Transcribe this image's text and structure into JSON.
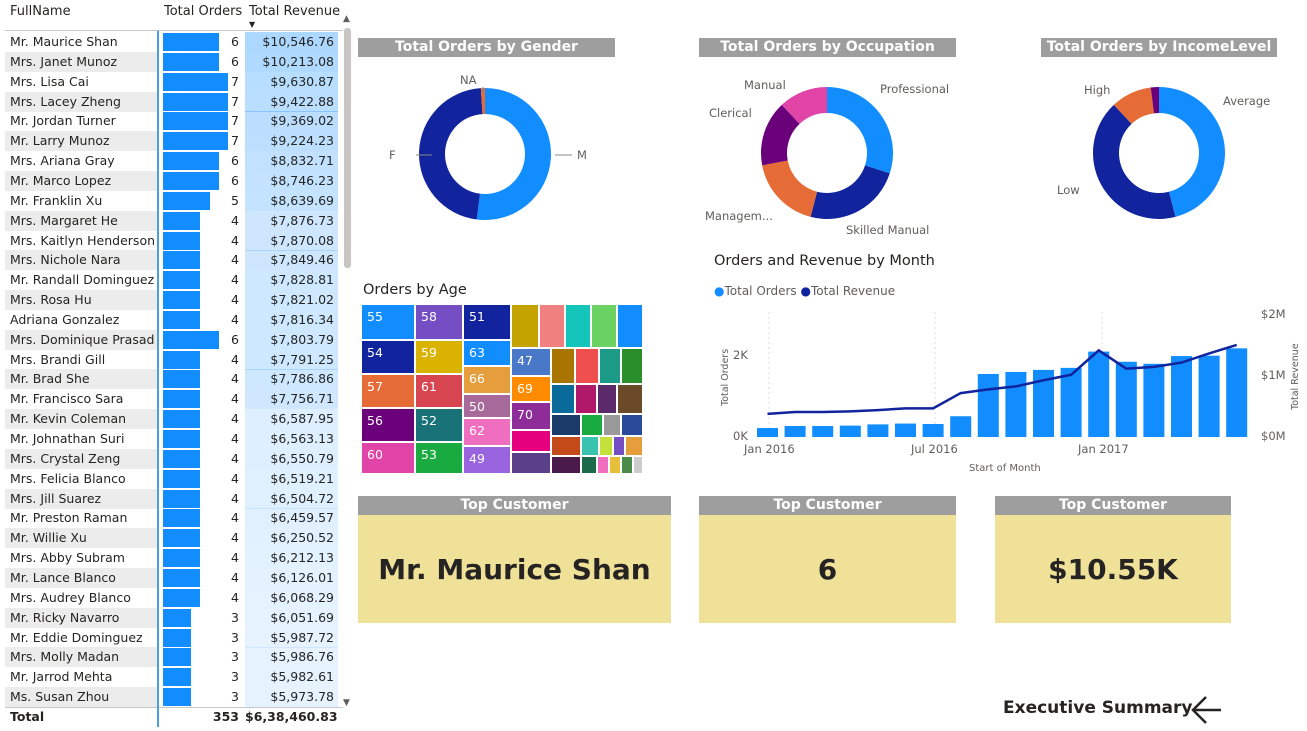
{
  "table": {
    "headers": {
      "name": "FullName",
      "orders": "Total Orders",
      "revenue": "Total Revenue"
    },
    "rows": [
      {
        "name": "Mr. Maurice Shan",
        "orders": 6,
        "revenue": "$10,546.76"
      },
      {
        "name": "Mrs. Janet Munoz",
        "orders": 6,
        "revenue": "$10,213.08"
      },
      {
        "name": "Mrs. Lisa Cai",
        "orders": 7,
        "revenue": "$9,630.87"
      },
      {
        "name": "Mrs. Lacey Zheng",
        "orders": 7,
        "revenue": "$9,422.88"
      },
      {
        "name": "Mr. Jordan Turner",
        "orders": 7,
        "revenue": "$9,369.02"
      },
      {
        "name": "Mr. Larry Munoz",
        "orders": 7,
        "revenue": "$9,224.23"
      },
      {
        "name": "Mrs. Ariana Gray",
        "orders": 6,
        "revenue": "$8,832.71"
      },
      {
        "name": "Mr. Marco Lopez",
        "orders": 6,
        "revenue": "$8,746.23"
      },
      {
        "name": "Mr. Franklin Xu",
        "orders": 5,
        "revenue": "$8,639.69"
      },
      {
        "name": "Mrs. Margaret He",
        "orders": 4,
        "revenue": "$7,876.73"
      },
      {
        "name": "Mrs. Kaitlyn Henderson",
        "orders": 4,
        "revenue": "$7,870.08"
      },
      {
        "name": "Mrs. Nichole Nara",
        "orders": 4,
        "revenue": "$7,849.46"
      },
      {
        "name": "Mr. Randall Dominguez",
        "orders": 4,
        "revenue": "$7,828.81"
      },
      {
        "name": "Mrs. Rosa Hu",
        "orders": 4,
        "revenue": "$7,821.02"
      },
      {
        "name": "Adriana Gonzalez",
        "orders": 4,
        "revenue": "$7,816.34"
      },
      {
        "name": "Mrs. Dominique Prasad",
        "orders": 6,
        "revenue": "$7,803.79"
      },
      {
        "name": "Mrs. Brandi Gill",
        "orders": 4,
        "revenue": "$7,791.25"
      },
      {
        "name": "Mr. Brad She",
        "orders": 4,
        "revenue": "$7,786.86"
      },
      {
        "name": "Mr. Francisco Sara",
        "orders": 4,
        "revenue": "$7,756.71"
      },
      {
        "name": "Mr. Kevin Coleman",
        "orders": 4,
        "revenue": "$6,587.95"
      },
      {
        "name": "Mr. Johnathan Suri",
        "orders": 4,
        "revenue": "$6,563.13"
      },
      {
        "name": "Mrs. Crystal Zeng",
        "orders": 4,
        "revenue": "$6,550.79"
      },
      {
        "name": "Mrs. Felicia Blanco",
        "orders": 4,
        "revenue": "$6,519.21"
      },
      {
        "name": "Mrs. Jill Suarez",
        "orders": 4,
        "revenue": "$6,504.72"
      },
      {
        "name": "Mr. Preston Raman",
        "orders": 4,
        "revenue": "$6,459.57"
      },
      {
        "name": "Mr. Willie Xu",
        "orders": 4,
        "revenue": "$6,250.52"
      },
      {
        "name": "Mrs. Abby Subram",
        "orders": 4,
        "revenue": "$6,212.13"
      },
      {
        "name": "Mr. Lance Blanco",
        "orders": 4,
        "revenue": "$6,126.01"
      },
      {
        "name": "Mrs. Audrey Blanco",
        "orders": 4,
        "revenue": "$6,068.29"
      },
      {
        "name": "Mr. Ricky Navarro",
        "orders": 3,
        "revenue": "$6,051.69"
      },
      {
        "name": "Mr. Eddie Dominguez",
        "orders": 3,
        "revenue": "$5,987.72"
      },
      {
        "name": "Mrs. Molly Madan",
        "orders": 3,
        "revenue": "$5,986.76"
      },
      {
        "name": "Mr. Jarrod Mehta",
        "orders": 3,
        "revenue": "$5,982.61"
      },
      {
        "name": "Ms. Susan Zhou",
        "orders": 3,
        "revenue": "$5,973.78"
      }
    ],
    "total": {
      "label": "Total",
      "orders": "353",
      "revenue": "$6,38,460.83"
    }
  },
  "gender_chart": {
    "title": "Total Orders by Gender",
    "slices": [
      {
        "label": "M",
        "value": 52,
        "color": "#118dff"
      },
      {
        "label": "F",
        "value": 47,
        "color": "#12239e"
      },
      {
        "label": "NA",
        "value": 1,
        "color": "#e66c37"
      }
    ]
  },
  "occupation_chart": {
    "title": "Total Orders by Occupation",
    "slices": [
      {
        "label": "Professional",
        "value": 30,
        "color": "#118dff"
      },
      {
        "label": "Skilled Manual",
        "value": 24,
        "color": "#12239e"
      },
      {
        "label": "Managem...",
        "value": 18,
        "color": "#e66c37"
      },
      {
        "label": "Clerical",
        "value": 16,
        "color": "#6b007b"
      },
      {
        "label": "Manual",
        "value": 12,
        "color": "#e044a7"
      }
    ]
  },
  "income_chart": {
    "title": "Total Orders by IncomeLevel",
    "slices": [
      {
        "label": "Average",
        "value": 46,
        "color": "#118dff"
      },
      {
        "label": "Low",
        "value": 42,
        "color": "#12239e"
      },
      {
        "label": "High",
        "value": 10,
        "color": "#e66c37"
      },
      {
        "label": "",
        "value": 2,
        "color": "#6b007b"
      }
    ]
  },
  "age_treemap": {
    "title": "Orders by Age",
    "labels": [
      "55",
      "58",
      "51",
      "54",
      "59",
      "63",
      "57",
      "61",
      "66",
      "47",
      "69",
      "56",
      "52",
      "50",
      "70",
      "60",
      "53",
      "62",
      "49"
    ]
  },
  "combo": {
    "title": "Orders and Revenue by Month",
    "legend": [
      {
        "label": "Total Orders",
        "color": "#118dff"
      },
      {
        "label": "Total Revenue",
        "color": "#12239e"
      }
    ],
    "x_labels": [
      "Jan 2016",
      "Jul 2016",
      "Jan 2017"
    ],
    "x_title": "Start of Month",
    "y_left_title": "Total Orders",
    "y_right_title": "Total Revenue",
    "y_left_ticks": [
      "0K",
      "2K"
    ],
    "y_right_ticks": [
      "$0M",
      "$1M",
      "$2M"
    ]
  },
  "chart_data": {
    "type": "bar",
    "categories": [
      "2015-12",
      "2016-01",
      "2016-02",
      "2016-03",
      "2016-04",
      "2016-05",
      "2016-06",
      "2016-07",
      "2016-08",
      "2016-09",
      "2016-10",
      "2016-11",
      "2016-12",
      "2017-01",
      "2017-02",
      "2017-03",
      "2017-04",
      "2017-05"
    ],
    "series": [
      {
        "name": "Total Orders",
        "values": [
          220,
          270,
          270,
          280,
          310,
          330,
          320,
          510,
          1550,
          1600,
          1650,
          1700,
          2100,
          1850,
          1800,
          1990,
          2000,
          2180
        ]
      },
      {
        "name": "Total Revenue",
        "values": [
          0.38,
          0.41,
          0.41,
          0.42,
          0.44,
          0.47,
          0.47,
          0.72,
          0.78,
          0.83,
          0.93,
          1.02,
          1.42,
          1.12,
          1.15,
          1.22,
          1.37,
          1.51
        ]
      }
    ],
    "ylim_left": [
      0,
      3000
    ],
    "ylim_right": [
      0,
      2
    ]
  },
  "cards": [
    {
      "title": "Top Customer",
      "value": "Mr. Maurice Shan"
    },
    {
      "title": "Top Customer",
      "value": "6"
    },
    {
      "title": "Top Customer",
      "value": "$10.55K"
    }
  ],
  "nav": {
    "label": "Executive Summary"
  }
}
